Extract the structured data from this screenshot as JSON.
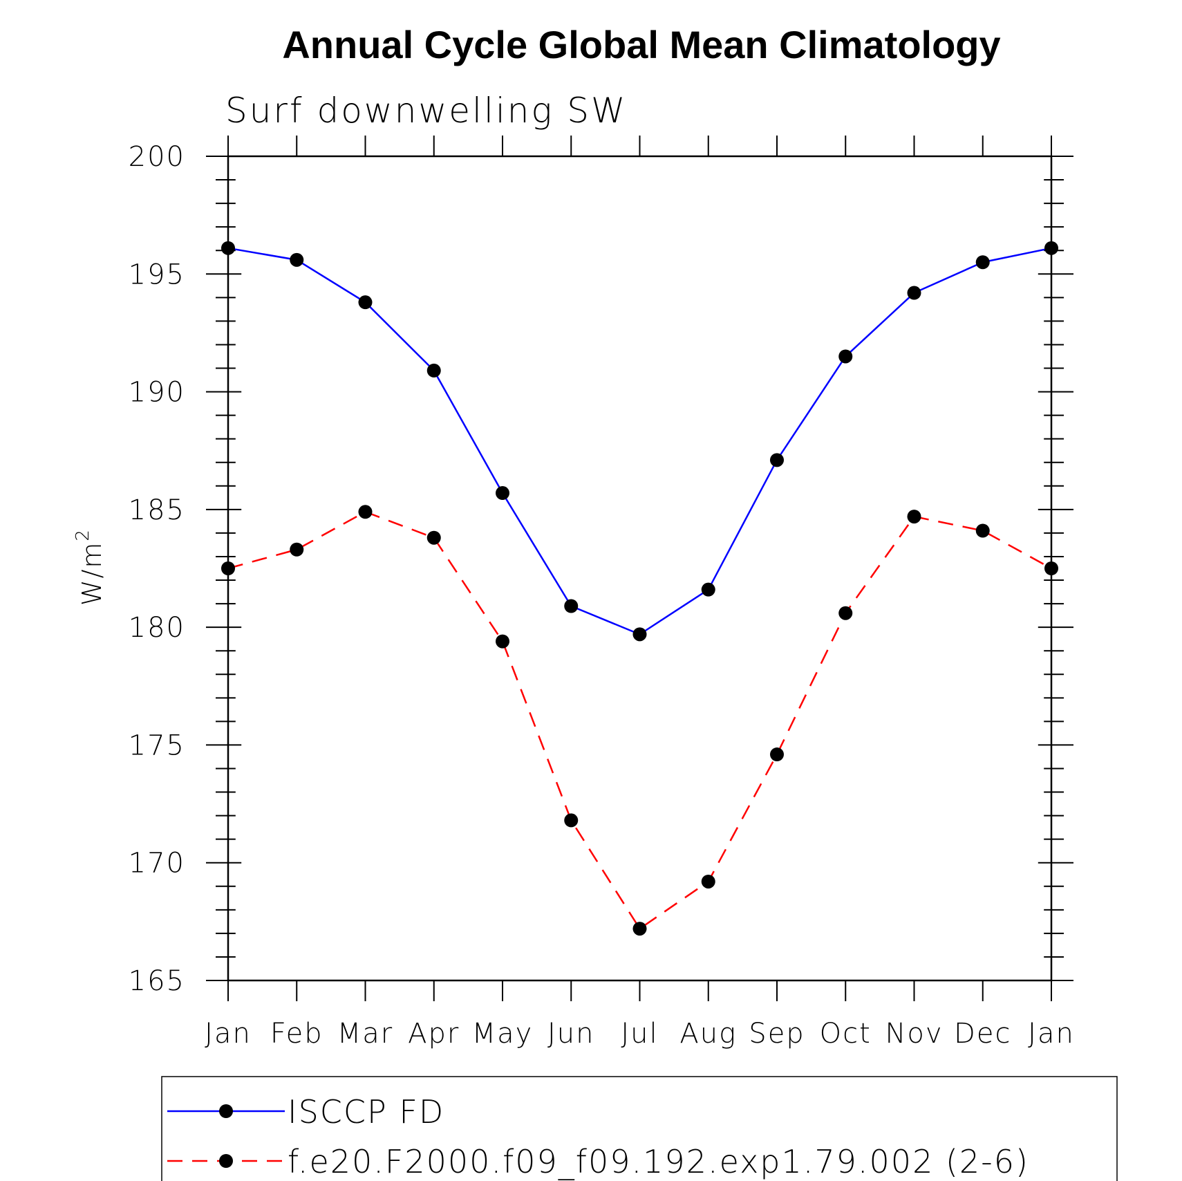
{
  "chart_data": {
    "type": "line",
    "title": "Annual Cycle Global Mean Climatology",
    "subtitle": "Surf downwelling SW",
    "ylabel": "W/m",
    "ylabel_sup": "2",
    "categories": [
      "Jan",
      "Feb",
      "Mar",
      "Apr",
      "May",
      "Jun",
      "Jul",
      "Aug",
      "Sep",
      "Oct",
      "Nov",
      "Dec",
      "Jan"
    ],
    "ylim": [
      165,
      200
    ],
    "yticks": [
      165,
      170,
      175,
      180,
      185,
      190,
      195,
      200
    ],
    "grid": false,
    "legend_position": "bottom",
    "series": [
      {
        "name": "ISCCP FD",
        "color": "#0000ff",
        "dash": "solid",
        "marker": "filled-circle",
        "values": [
          196.1,
          195.6,
          193.8,
          190.9,
          185.7,
          180.9,
          179.7,
          181.6,
          187.1,
          191.5,
          194.2,
          195.5,
          196.1
        ]
      },
      {
        "name": "f.e20.F2000.f09_f09.192.exp1.79.002 (2-6)",
        "color": "#ff0000",
        "dash": "dashed",
        "marker": "filled-circle",
        "values": [
          182.5,
          183.3,
          184.9,
          183.8,
          179.4,
          171.8,
          167.2,
          169.2,
          174.6,
          180.6,
          184.7,
          184.1,
          182.5
        ]
      }
    ]
  }
}
